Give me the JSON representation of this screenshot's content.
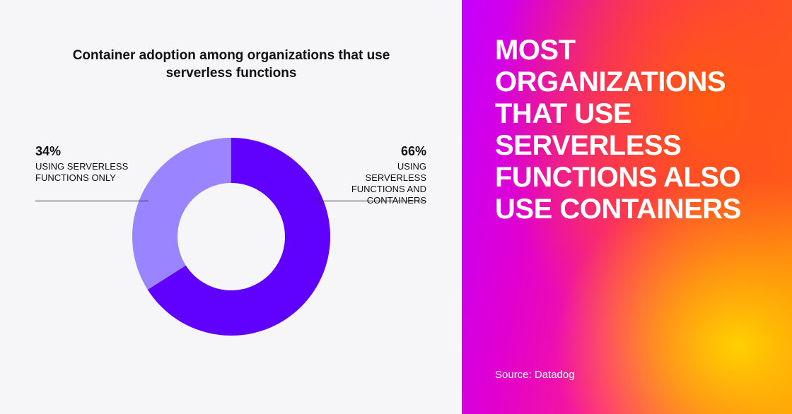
{
  "chart_data": {
    "type": "donut",
    "title": "Container adoption among organizations that use serverless functions",
    "categories": [
      "USING SERVERLESS FUNCTIONS ONLY",
      "USING SERVERLESS FUNCTIONS AND CONTAINERS"
    ],
    "values": [
      34,
      66
    ],
    "value_labels": [
      "34%",
      "66%"
    ],
    "colors": [
      "#9a84ff",
      "#6000ff"
    ]
  },
  "panel": {
    "headline": "MOST ORGANIZATIONS THAT USE SERVERLESS FUNCTIONS ALSO USE CONTAINERS",
    "source": "Source: Datadog"
  }
}
